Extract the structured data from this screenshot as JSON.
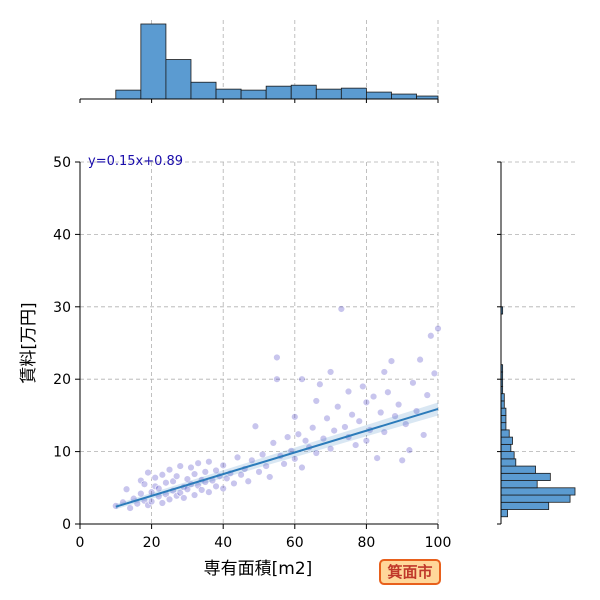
{
  "chart_data": {
    "type": "scatter",
    "title": "",
    "xlabel": "専有面積[m2]",
    "ylabel": "賃料[万円]",
    "xlim": [
      0,
      100
    ],
    "ylim": [
      0,
      50
    ],
    "x_ticks": [
      0,
      20,
      40,
      60,
      80,
      100
    ],
    "y_ticks": [
      0,
      10,
      20,
      30,
      40,
      50
    ],
    "grid": true,
    "regression": {
      "slope": 0.15,
      "intercept": 0.89,
      "label": "y=0.15x+0.89",
      "x_range": [
        10,
        100
      ]
    },
    "colors": {
      "points": "#3a2fbf",
      "regression_line": "#2b7bba",
      "hist_fill": "#5b9bd1",
      "equation_text": "#1a0dab"
    },
    "marginal_x_histogram": {
      "bin_edges": [
        0,
        10,
        17,
        24,
        31,
        38,
        45,
        52,
        59,
        66,
        73,
        80,
        87,
        94,
        101
      ],
      "counts": [
        0,
        9,
        76,
        40,
        17,
        10,
        9,
        13,
        14,
        10,
        11,
        7,
        5,
        3
      ]
    },
    "marginal_y_histogram": {
      "bin_edges": [
        1,
        2,
        3,
        4,
        5,
        6,
        7,
        8,
        9,
        10,
        11,
        12,
        13,
        14,
        15,
        16,
        17,
        18,
        19,
        20,
        21,
        22,
        23,
        24,
        25,
        26,
        27,
        28,
        29,
        30
      ],
      "counts": [
        4,
        29,
        42,
        45,
        22,
        30,
        21,
        9,
        8,
        6,
        7,
        5,
        3,
        3,
        3,
        2,
        2,
        1,
        1,
        1,
        1,
        0,
        0,
        0,
        0,
        0,
        0,
        0,
        1
      ]
    },
    "points": [
      [
        10,
        2.5
      ],
      [
        12,
        3.0
      ],
      [
        13,
        4.8
      ],
      [
        14,
        2.2
      ],
      [
        15,
        3.5
      ],
      [
        16,
        2.8
      ],
      [
        17,
        4.2
      ],
      [
        17,
        6.0
      ],
      [
        18,
        3.2
      ],
      [
        18,
        5.5
      ],
      [
        19,
        2.6
      ],
      [
        19,
        7.1
      ],
      [
        20,
        4.4
      ],
      [
        20,
        3.1
      ],
      [
        21,
        5.2
      ],
      [
        21,
        6.4
      ],
      [
        22,
        3.8
      ],
      [
        22,
        4.9
      ],
      [
        23,
        2.9
      ],
      [
        23,
        6.8
      ],
      [
        24,
        4.1
      ],
      [
        24,
        5.7
      ],
      [
        25,
        3.4
      ],
      [
        25,
        7.5
      ],
      [
        26,
        4.6
      ],
      [
        26,
        5.9
      ],
      [
        27,
        3.9
      ],
      [
        27,
        6.6
      ],
      [
        28,
        4.3
      ],
      [
        28,
        8.0
      ],
      [
        29,
        5.1
      ],
      [
        29,
        3.6
      ],
      [
        30,
        4.8
      ],
      [
        30,
        6.2
      ],
      [
        31,
        5.5
      ],
      [
        31,
        7.8
      ],
      [
        32,
        4.0
      ],
      [
        32,
        6.9
      ],
      [
        33,
        5.3
      ],
      [
        33,
        8.4
      ],
      [
        34,
        4.7
      ],
      [
        34,
        6.1
      ],
      [
        35,
        5.8
      ],
      [
        35,
        7.2
      ],
      [
        36,
        4.4
      ],
      [
        36,
        8.6
      ],
      [
        37,
        6.0
      ],
      [
        38,
        5.2
      ],
      [
        38,
        7.4
      ],
      [
        39,
        6.6
      ],
      [
        40,
        4.9
      ],
      [
        40,
        8.1
      ],
      [
        41,
        6.3
      ],
      [
        42,
        7.0
      ],
      [
        43,
        5.6
      ],
      [
        44,
        9.2
      ],
      [
        45,
        6.8
      ],
      [
        46,
        7.6
      ],
      [
        47,
        5.9
      ],
      [
        48,
        8.8
      ],
      [
        49,
        13.5
      ],
      [
        50,
        7.2
      ],
      [
        51,
        9.6
      ],
      [
        52,
        8.0
      ],
      [
        53,
        6.5
      ],
      [
        54,
        11.2
      ],
      [
        55,
        20.0
      ],
      [
        55,
        23.0
      ],
      [
        56,
        9.4
      ],
      [
        57,
        8.3
      ],
      [
        58,
        12.0
      ],
      [
        59,
        10.1
      ],
      [
        60,
        9.0
      ],
      [
        60,
        14.8
      ],
      [
        61,
        12.4
      ],
      [
        62,
        7.8
      ],
      [
        62,
        20.0
      ],
      [
        63,
        11.5
      ],
      [
        64,
        10.6
      ],
      [
        65,
        13.3
      ],
      [
        66,
        17.0
      ],
      [
        66,
        9.8
      ],
      [
        67,
        19.3
      ],
      [
        68,
        11.8
      ],
      [
        69,
        14.6
      ],
      [
        70,
        10.4
      ],
      [
        70,
        21.0
      ],
      [
        71,
        12.9
      ],
      [
        72,
        16.2
      ],
      [
        73,
        29.7
      ],
      [
        74,
        13.4
      ],
      [
        75,
        18.3
      ],
      [
        75,
        12.0
      ],
      [
        76,
        15.1
      ],
      [
        77,
        10.9
      ],
      [
        78,
        14.2
      ],
      [
        79,
        19.0
      ],
      [
        80,
        11.5
      ],
      [
        80,
        16.8
      ],
      [
        81,
        13.0
      ],
      [
        82,
        17.6
      ],
      [
        83,
        9.1
      ],
      [
        84,
        15.4
      ],
      [
        85,
        21.0
      ],
      [
        85,
        12.7
      ],
      [
        86,
        18.2
      ],
      [
        87,
        22.5
      ],
      [
        88,
        14.9
      ],
      [
        89,
        16.5
      ],
      [
        90,
        8.8
      ],
      [
        91,
        13.8
      ],
      [
        92,
        10.2
      ],
      [
        93,
        19.5
      ],
      [
        94,
        15.6
      ],
      [
        95,
        22.7
      ],
      [
        96,
        12.3
      ],
      [
        97,
        17.8
      ],
      [
        98,
        26.0
      ],
      [
        99,
        20.8
      ],
      [
        100,
        27.0
      ]
    ]
  },
  "badge": {
    "label": "箕面市"
  }
}
